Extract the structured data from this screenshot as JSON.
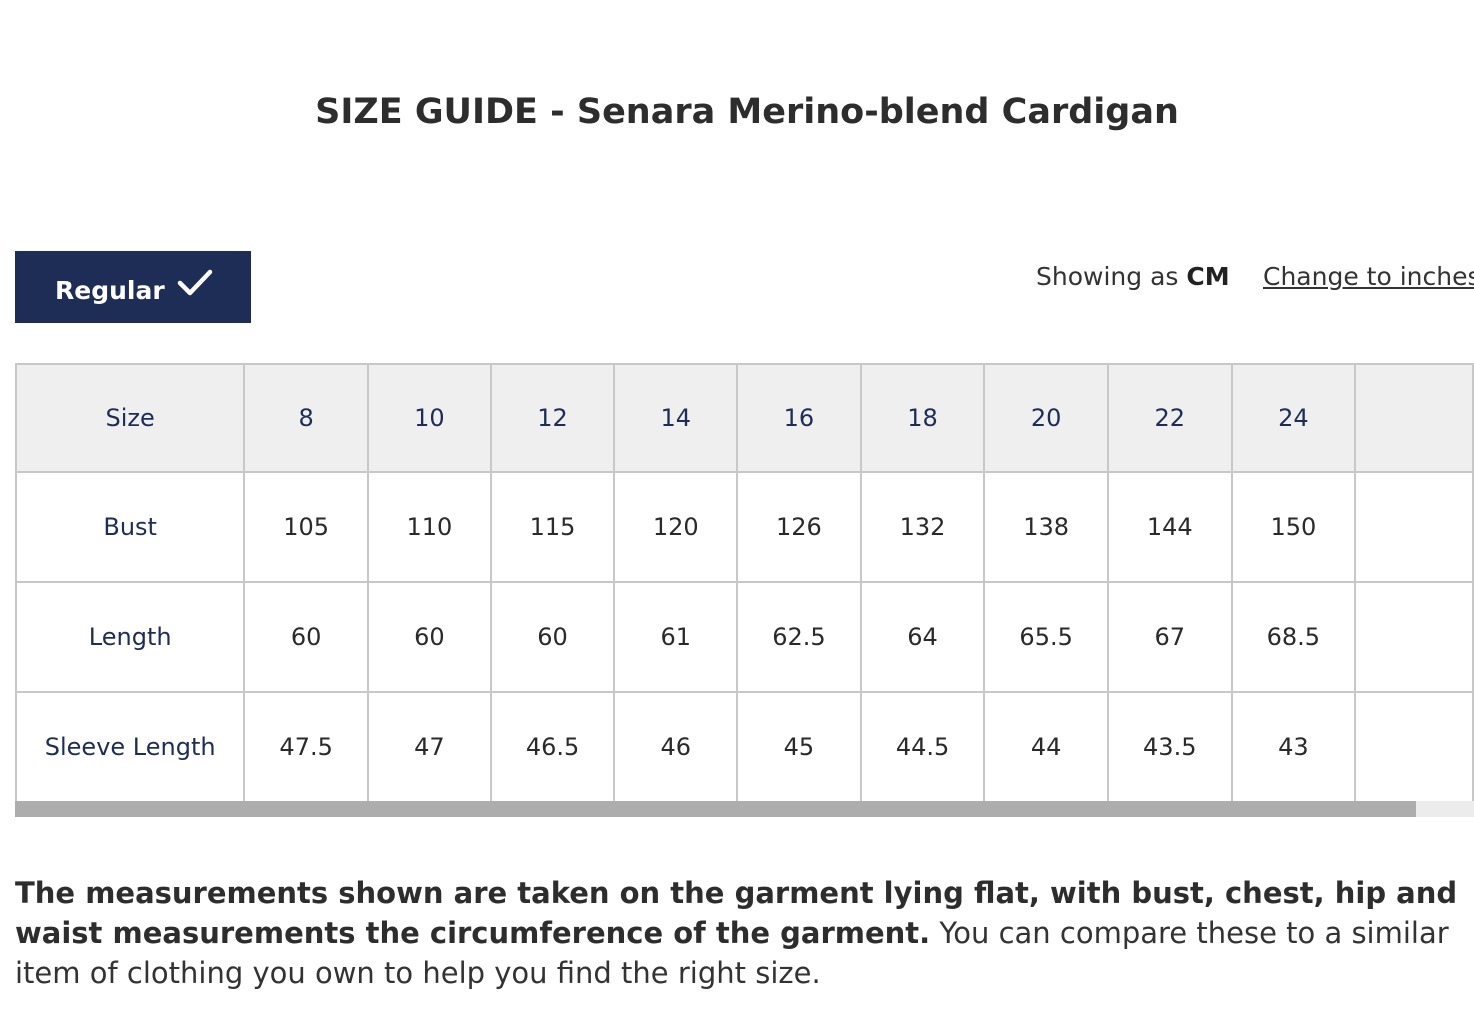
{
  "page": {
    "title": "SIZE GUIDE - Senara Merino-blend Cardigan"
  },
  "fit": {
    "label": "Regular",
    "selected": true,
    "icon": "check-icon",
    "color": "#1e2d55"
  },
  "units": {
    "prefix": "Showing as",
    "current": "CM",
    "toggle_label": "Change to inches"
  },
  "table": {
    "header": {
      "label": "Size",
      "values": [
        "8",
        "10",
        "12",
        "14",
        "16",
        "18",
        "20",
        "22",
        "24",
        ""
      ]
    },
    "rows": [
      {
        "label": "Bust",
        "values": [
          "105",
          "110",
          "115",
          "120",
          "126",
          "132",
          "138",
          "144",
          "150",
          ""
        ]
      },
      {
        "label": "Length",
        "values": [
          "60",
          "60",
          "60",
          "61",
          "62.5",
          "64",
          "65.5",
          "67",
          "68.5",
          ""
        ]
      },
      {
        "label": "Sleeve Length",
        "values": [
          "47.5",
          "47",
          "46.5",
          "46",
          "45",
          "44.5",
          "44",
          "43.5",
          "43",
          ""
        ]
      }
    ],
    "scroll_position": 0.96
  },
  "note": {
    "bold": "The measurements shown are taken on the garment lying flat, with bust, chest, hip and waist measurements the circumference of the garment.",
    "regular": " You can compare these to a similar item of clothing you own to help you find the right size."
  }
}
